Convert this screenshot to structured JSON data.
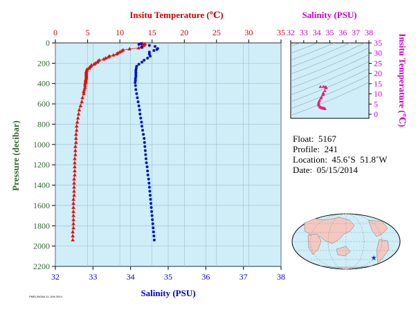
{
  "chart_data": [
    {
      "type": "scatter",
      "top_axis": {
        "label": "Insitu Temperature (℃)",
        "range": [
          0,
          35
        ],
        "ticks": [
          "0",
          "5",
          "10",
          "15",
          "20",
          "25",
          "30",
          "35"
        ],
        "color": "#cc0000"
      },
      "bottom_axis": {
        "label": "Salinity (PSU)",
        "range": [
          32,
          38
        ],
        "ticks": [
          "32",
          "33",
          "34",
          "35",
          "36",
          "37",
          "38"
        ],
        "color": "#0000cc"
      },
      "left_axis": {
        "label": "Pressure (decibar)",
        "range": [
          0,
          2200
        ],
        "inverted": true,
        "ticks": [
          "0",
          "200",
          "400",
          "600",
          "800",
          "1000",
          "1200",
          "1400",
          "1600",
          "1800",
          "2000",
          "2200"
        ],
        "color": "#336633"
      },
      "background": "#cfeef8",
      "grid": true,
      "temperature": {
        "color": "#e01010",
        "marker": "triangle",
        "pressure": [
          7,
          10,
          15,
          20,
          25,
          30,
          40,
          50,
          60,
          70,
          80,
          90,
          100,
          110,
          120,
          130,
          140,
          150,
          160,
          170,
          180,
          190,
          200,
          210,
          220,
          230,
          240,
          250,
          260,
          270,
          280,
          290,
          300,
          310,
          320,
          330,
          340,
          350,
          360,
          370,
          380,
          390,
          400,
          420,
          440,
          460,
          480,
          500,
          540,
          580,
          620,
          660,
          700,
          740,
          780,
          820,
          860,
          900,
          940,
          980,
          1020,
          1060,
          1100,
          1140,
          1180,
          1220,
          1260,
          1300,
          1340,
          1380,
          1420,
          1460,
          1500,
          1540,
          1580,
          1620,
          1660,
          1700,
          1740,
          1780,
          1820,
          1860,
          1900,
          1940
        ],
        "value": [
          13.5,
          13.9,
          13.8,
          13.5,
          13.7,
          13.4,
          13.4,
          12.9,
          11.5,
          10.5,
          10.3,
          10.0,
          9.7,
          9.5,
          9.0,
          8.4,
          8.2,
          7.8,
          7.5,
          6.8,
          6.6,
          6.5,
          6.2,
          6.0,
          5.6,
          5.5,
          5.3,
          5.2,
          4.9,
          4.9,
          4.8,
          4.8,
          4.8,
          4.8,
          4.8,
          4.8,
          4.8,
          4.8,
          4.7,
          4.7,
          4.7,
          4.7,
          4.6,
          4.6,
          4.6,
          4.5,
          4.4,
          4.4,
          4.2,
          4.1,
          3.9,
          3.7,
          3.6,
          3.5,
          3.4,
          3.3,
          3.3,
          3.2,
          3.2,
          3.2,
          3.1,
          3.1,
          3.1,
          3.0,
          3.0,
          3.0,
          3.0,
          3.0,
          2.9,
          2.9,
          2.9,
          2.9,
          2.9,
          2.8,
          2.8,
          2.8,
          2.8,
          2.8,
          2.8,
          2.8,
          2.8,
          2.7,
          2.7,
          2.7
        ]
      },
      "salinity": {
        "color": "#0010d0",
        "marker": "circle",
        "pressure": [
          7,
          15,
          25,
          35,
          45,
          55,
          65,
          75,
          90,
          110,
          130,
          150,
          170,
          190,
          210,
          230,
          250,
          270,
          290,
          310,
          330,
          350,
          370,
          390,
          420,
          460,
          500,
          540,
          580,
          620,
          660,
          700,
          740,
          780,
          820,
          860,
          900,
          940,
          980,
          1020,
          1060,
          1100,
          1140,
          1180,
          1220,
          1260,
          1300,
          1340,
          1380,
          1420,
          1460,
          1500,
          1540,
          1580,
          1620,
          1660,
          1700,
          1740,
          1780,
          1820,
          1860,
          1900,
          1940
        ],
        "value": [
          34.28,
          34.22,
          34.5,
          34.65,
          34.3,
          34.72,
          34.7,
          34.62,
          34.5,
          34.5,
          34.52,
          34.45,
          34.36,
          34.3,
          34.22,
          34.16,
          34.15,
          34.14,
          34.14,
          34.14,
          34.14,
          34.13,
          34.13,
          34.12,
          34.13,
          34.14,
          34.16,
          34.18,
          34.2,
          34.22,
          34.24,
          34.25,
          34.27,
          34.29,
          34.3,
          34.32,
          34.34,
          34.36,
          34.37,
          34.38,
          34.39,
          34.4,
          34.41,
          34.42,
          34.44,
          34.45,
          34.46,
          34.48,
          34.49,
          34.5,
          34.51,
          34.52,
          34.53,
          34.54,
          34.55,
          34.56,
          34.57,
          34.58,
          34.59,
          34.6,
          34.61,
          34.62,
          34.63
        ]
      }
    },
    {
      "type": "scatter",
      "x_axis": {
        "label": "Salinity (PSU)",
        "range": [
          32,
          38
        ],
        "ticks": [
          "32",
          "33",
          "34",
          "35",
          "36",
          "37",
          "38"
        ],
        "color": "#cc00cc"
      },
      "y_axis": {
        "label": "Insitu Temperature (℃)",
        "range": [
          -2,
          35
        ],
        "ticks": [
          "0",
          "5",
          "10",
          "15",
          "20",
          "25",
          "30",
          "35"
        ],
        "color": "#cc00cc"
      },
      "background": "#cfeef8",
      "point_color": "#e8207a",
      "points": [
        [
          34.28,
          13.5
        ],
        [
          34.5,
          13.6
        ],
        [
          34.65,
          13.4
        ],
        [
          34.72,
          13.2
        ],
        [
          34.7,
          12.9
        ],
        [
          34.62,
          11.5
        ],
        [
          34.5,
          10.5
        ],
        [
          34.52,
          10.0
        ],
        [
          34.45,
          9.5
        ],
        [
          34.36,
          8.4
        ],
        [
          34.3,
          7.8
        ],
        [
          34.22,
          6.8
        ],
        [
          34.16,
          6.2
        ],
        [
          34.14,
          5.5
        ],
        [
          34.14,
          4.9
        ],
        [
          34.13,
          4.8
        ],
        [
          34.15,
          4.6
        ],
        [
          34.2,
          4.1
        ],
        [
          34.25,
          3.6
        ],
        [
          34.3,
          3.3
        ],
        [
          34.36,
          3.2
        ],
        [
          34.4,
          3.1
        ],
        [
          34.46,
          3.0
        ],
        [
          34.52,
          2.9
        ],
        [
          34.58,
          2.8
        ],
        [
          34.63,
          2.7
        ]
      ]
    }
  ],
  "float_info": {
    "float": "Float:  5167",
    "profile": "Profile:  241",
    "location": "Location:  45.6˚S  51.8˚W",
    "date": "Date:  05/15/2014"
  },
  "map": {
    "land_color": "#f4c8c0",
    "ocean_color": "#cfeef8",
    "marker_color": "#1a1aff"
  },
  "footer_tiny": "PMEL/NOAA 11-JUN-2014"
}
